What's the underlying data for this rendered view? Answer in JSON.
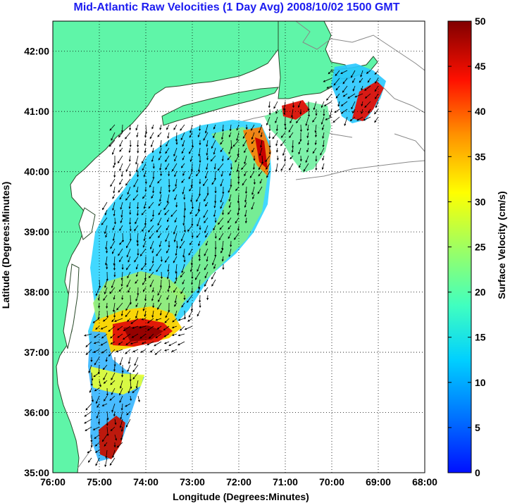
{
  "title": "Mid-Atlantic Raw Velocities (1 Day Avg) 2008/10/02 1500 GMT",
  "map": {
    "xlabel": "Longitude (Degrees:Minutes)",
    "ylabel": "Latitude (Degrees:Minutes)",
    "lon_ticks": [
      "76:00",
      "75:00",
      "74:00",
      "73:00",
      "72:00",
      "71:00",
      "70:00",
      "69:00",
      "68:00"
    ],
    "lat_ticks": [
      "42:00",
      "41:00",
      "40:00",
      "39:00",
      "38:00",
      "37:00",
      "36:00",
      "35:00"
    ],
    "lon_range": [
      -76,
      -68
    ],
    "lat_range": [
      35,
      42.5
    ],
    "land_color": "#5ff5a8",
    "grid": true
  },
  "colorbar": {
    "label": "Surface Velocity (cm/s)",
    "ticks": [
      "50",
      "45",
      "40",
      "35",
      "30",
      "25",
      "20",
      "15",
      "10",
      "5",
      "0"
    ],
    "range": [
      0,
      50
    ],
    "colormap": "jet"
  }
}
